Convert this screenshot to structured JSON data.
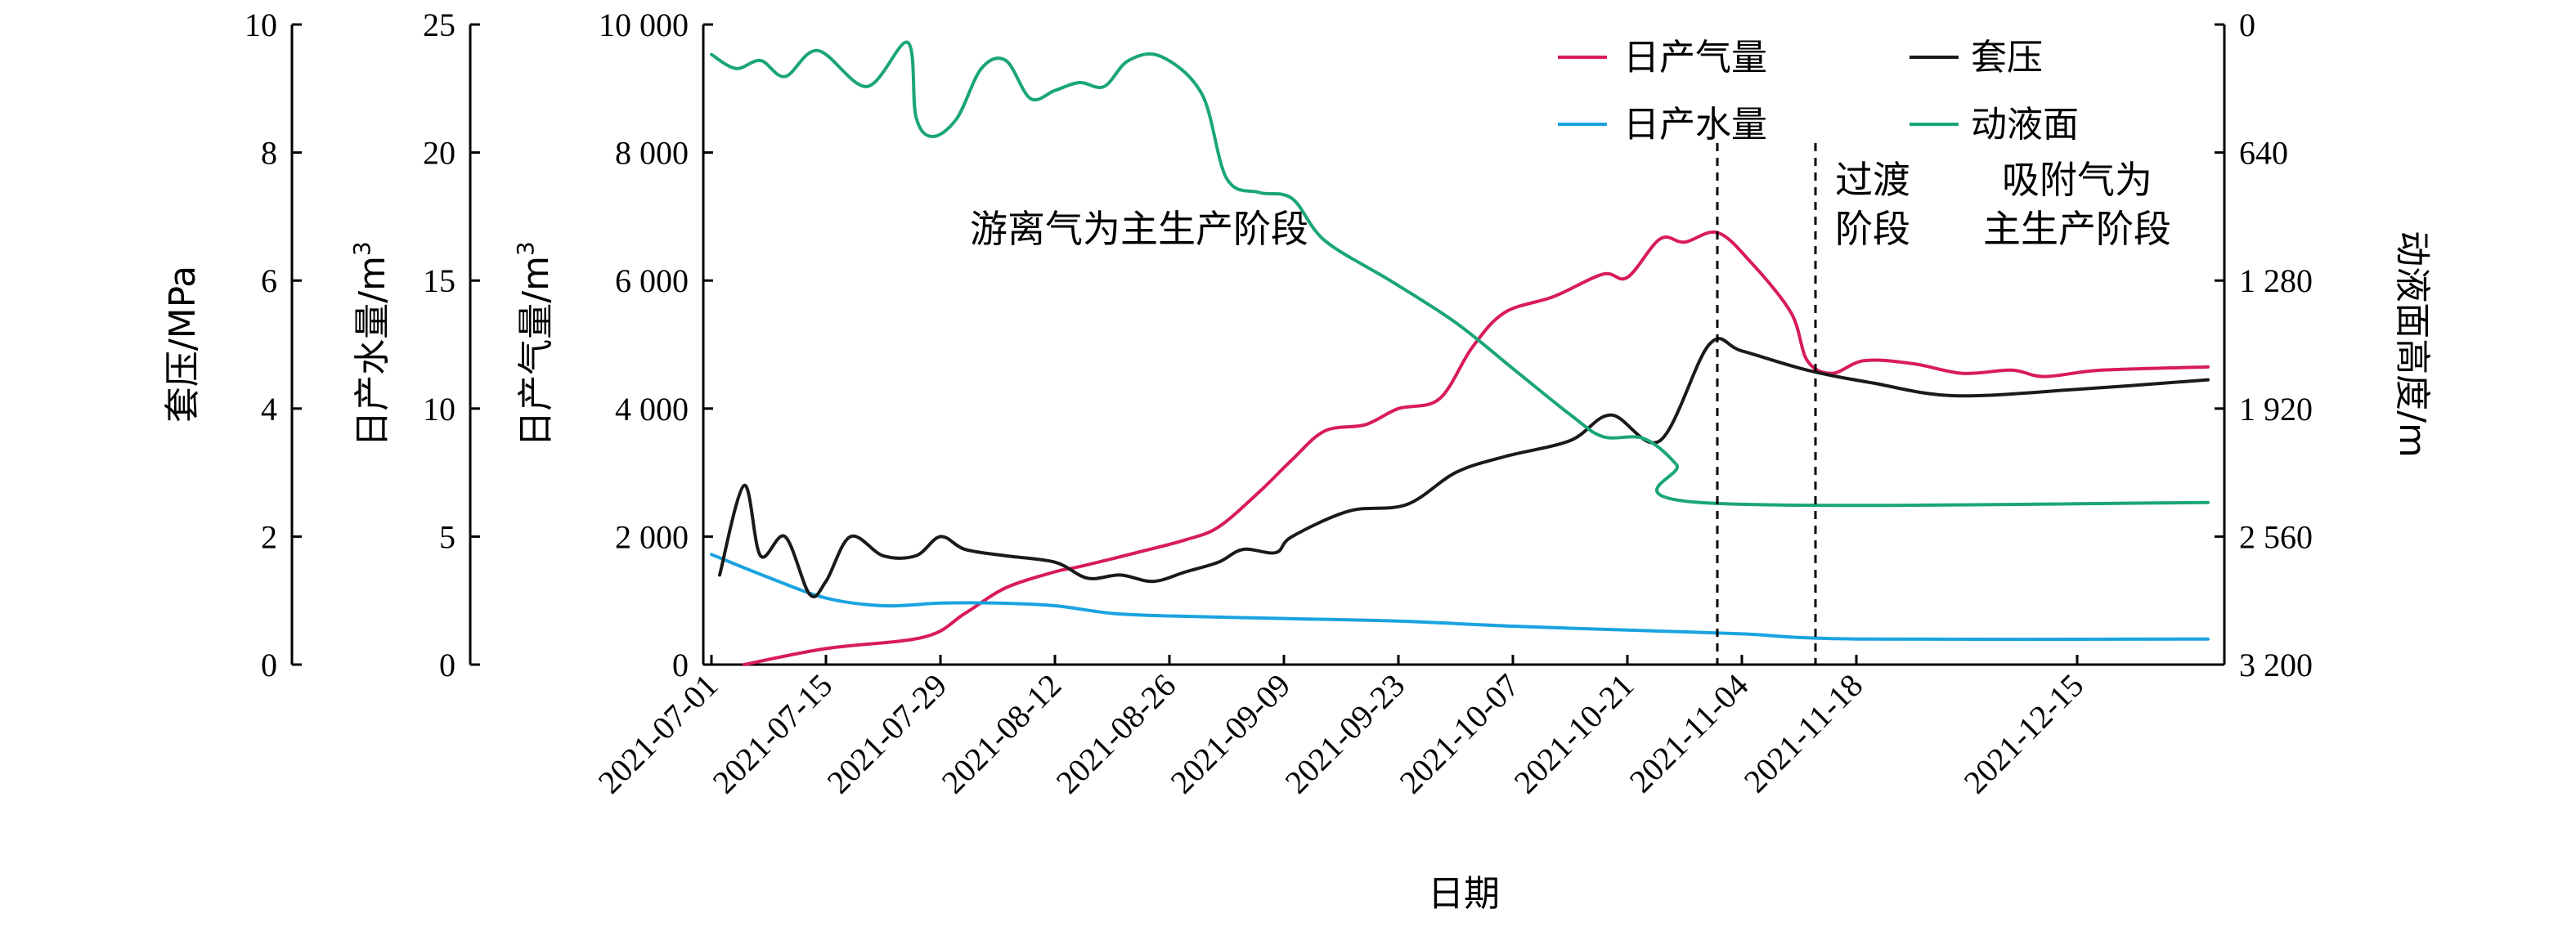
{
  "chart_data": {
    "type": "line",
    "xlabel": "日期",
    "x_ticks": [
      "2021-07-01",
      "2021-07-15",
      "2021-07-29",
      "2021-08-12",
      "2021-08-26",
      "2021-09-09",
      "2021-09-23",
      "2021-10-07",
      "2021-10-21",
      "2021-11-04",
      "2021-11-18",
      "2021-12-15"
    ],
    "x_range": [
      "2021-06-30",
      "2022-01-02"
    ],
    "axes": {
      "casing_pressure": {
        "label": "套压/MPa",
        "range": [
          0,
          10
        ],
        "ticks": [
          0,
          2,
          4,
          6,
          8,
          10
        ],
        "tick_labels": [
          "0",
          "2",
          "4",
          "6",
          "8",
          "10"
        ],
        "side": "left"
      },
      "water": {
        "label": "日产水量/m",
        "label_sup": "3",
        "range": [
          0,
          25
        ],
        "ticks": [
          0,
          5,
          10,
          15,
          20,
          25
        ],
        "tick_labels": [
          "0",
          "5",
          "10",
          "15",
          "20",
          "25"
        ],
        "side": "left"
      },
      "gas": {
        "label": "日产气量/m",
        "label_sup": "3",
        "range": [
          0,
          10000
        ],
        "ticks": [
          0,
          2000,
          4000,
          6000,
          8000,
          10000
        ],
        "tick_labels": [
          "0",
          "2 000",
          "4 000",
          "6 000",
          "8 000",
          "10 000"
        ],
        "side": "left"
      },
      "fluid_level": {
        "label": "动液面高度/m",
        "range": [
          0,
          3200
        ],
        "inverted": true,
        "ticks": [
          0,
          640,
          1280,
          1920,
          2560,
          3200
        ],
        "tick_labels": [
          "0",
          "640",
          "1 280",
          "1 920",
          "2 560",
          "3 200"
        ],
        "side": "right"
      }
    },
    "series": [
      {
        "name": "日产气量",
        "axis": "gas",
        "color": "#d81b5a",
        "points": [
          [
            "2021-07-05",
            0
          ],
          [
            "2021-07-15",
            250
          ],
          [
            "2021-07-27",
            430
          ],
          [
            "2021-08-01",
            800
          ],
          [
            "2021-08-06",
            1200
          ],
          [
            "2021-08-12",
            1450
          ],
          [
            "2021-08-15",
            1530
          ],
          [
            "2021-08-22",
            1750
          ],
          [
            "2021-08-28",
            1950
          ],
          [
            "2021-09-01",
            2150
          ],
          [
            "2021-09-06",
            2700
          ],
          [
            "2021-09-10",
            3200
          ],
          [
            "2021-09-14",
            3650
          ],
          [
            "2021-09-19",
            3750
          ],
          [
            "2021-09-23",
            4000
          ],
          [
            "2021-09-28",
            4150
          ],
          [
            "2021-10-02",
            4950
          ],
          [
            "2021-10-06",
            5500
          ],
          [
            "2021-10-12",
            5750
          ],
          [
            "2021-10-18",
            6100
          ],
          [
            "2021-10-21",
            6050
          ],
          [
            "2021-10-25",
            6650
          ],
          [
            "2021-10-28",
            6600
          ],
          [
            "2021-11-01",
            6750
          ],
          [
            "2021-11-05",
            6300
          ],
          [
            "2021-11-10",
            5500
          ],
          [
            "2021-11-12",
            4750
          ],
          [
            "2021-11-15",
            4550
          ],
          [
            "2021-11-19",
            4750
          ],
          [
            "2021-11-25",
            4700
          ],
          [
            "2021-12-01",
            4550
          ],
          [
            "2021-12-07",
            4600
          ],
          [
            "2021-12-11",
            4500
          ],
          [
            "2021-12-18",
            4600
          ],
          [
            "2021-12-31",
            4650
          ]
        ]
      },
      {
        "name": "日产水量",
        "axis": "water",
        "color": "#1aa3e0",
        "points": [
          [
            "2021-07-01",
            4.3
          ],
          [
            "2021-07-08",
            3.4
          ],
          [
            "2021-07-15",
            2.6
          ],
          [
            "2021-07-22",
            2.3
          ],
          [
            "2021-07-29",
            2.4
          ],
          [
            "2021-08-05",
            2.4
          ],
          [
            "2021-08-12",
            2.3
          ],
          [
            "2021-08-19",
            2.0
          ],
          [
            "2021-08-26",
            1.9
          ],
          [
            "2021-09-09",
            1.8
          ],
          [
            "2021-09-23",
            1.7
          ],
          [
            "2021-10-07",
            1.5
          ],
          [
            "2021-10-21",
            1.35
          ],
          [
            "2021-11-04",
            1.2
          ],
          [
            "2021-11-18",
            1.0
          ],
          [
            "2021-12-31",
            1.0
          ]
        ]
      },
      {
        "name": "套压",
        "axis": "casing_pressure",
        "color": "#1a1a1a",
        "points": [
          [
            "2021-07-02",
            1.4
          ],
          [
            "2021-07-05",
            2.8
          ],
          [
            "2021-07-07",
            1.7
          ],
          [
            "2021-07-10",
            2.0
          ],
          [
            "2021-07-13",
            1.1
          ],
          [
            "2021-07-15",
            1.3
          ],
          [
            "2021-07-18",
            2.0
          ],
          [
            "2021-07-22",
            1.7
          ],
          [
            "2021-07-26",
            1.7
          ],
          [
            "2021-07-29",
            2.0
          ],
          [
            "2021-08-01",
            1.8
          ],
          [
            "2021-08-06",
            1.7
          ],
          [
            "2021-08-12",
            1.6
          ],
          [
            "2021-08-16",
            1.35
          ],
          [
            "2021-08-20",
            1.4
          ],
          [
            "2021-08-24",
            1.3
          ],
          [
            "2021-08-28",
            1.45
          ],
          [
            "2021-09-01",
            1.6
          ],
          [
            "2021-09-04",
            1.8
          ],
          [
            "2021-09-08",
            1.75
          ],
          [
            "2021-09-10",
            2.0
          ],
          [
            "2021-09-17",
            2.4
          ],
          [
            "2021-09-24",
            2.5
          ],
          [
            "2021-09-30",
            3.0
          ],
          [
            "2021-10-06",
            3.25
          ],
          [
            "2021-10-14",
            3.5
          ],
          [
            "2021-10-19",
            3.9
          ],
          [
            "2021-10-25",
            3.5
          ],
          [
            "2021-10-31",
            5.0
          ],
          [
            "2021-11-04",
            4.9
          ],
          [
            "2021-11-12",
            4.6
          ],
          [
            "2021-11-20",
            4.4
          ],
          [
            "2021-11-30",
            4.2
          ],
          [
            "2021-12-15",
            4.3
          ],
          [
            "2021-12-31",
            4.45
          ]
        ]
      },
      {
        "name": "动液面",
        "axis": "fluid_level",
        "color": "#1aa57a",
        "points": [
          [
            "2021-07-01",
            150
          ],
          [
            "2021-07-04",
            220
          ],
          [
            "2021-07-07",
            180
          ],
          [
            "2021-07-10",
            260
          ],
          [
            "2021-07-14",
            130
          ],
          [
            "2021-07-20",
            310
          ],
          [
            "2021-07-25",
            90
          ],
          [
            "2021-07-26",
            460
          ],
          [
            "2021-07-28",
            560
          ],
          [
            "2021-07-31",
            470
          ],
          [
            "2021-08-03",
            220
          ],
          [
            "2021-08-06",
            180
          ],
          [
            "2021-08-09",
            370
          ],
          [
            "2021-08-12",
            330
          ],
          [
            "2021-08-15",
            290
          ],
          [
            "2021-08-18",
            310
          ],
          [
            "2021-08-21",
            180
          ],
          [
            "2021-08-25",
            160
          ],
          [
            "2021-08-30",
            350
          ],
          [
            "2021-09-02",
            770
          ],
          [
            "2021-09-06",
            840
          ],
          [
            "2021-09-10",
            870
          ],
          [
            "2021-09-14",
            1080
          ],
          [
            "2021-09-22",
            1280
          ],
          [
            "2021-09-30",
            1490
          ],
          [
            "2021-10-07",
            1720
          ],
          [
            "2021-10-14",
            1950
          ],
          [
            "2021-10-18",
            2060
          ],
          [
            "2021-10-23",
            2070
          ],
          [
            "2021-10-27",
            2200
          ],
          [
            "2021-10-30",
            2390
          ],
          [
            "2021-12-31",
            2390
          ]
        ]
      }
    ],
    "legend": [
      {
        "name": "日产气量",
        "color": "#d81b5a"
      },
      {
        "name": "套压",
        "color": "#1a1a1a"
      },
      {
        "name": "日产水量",
        "color": "#1aa3e0"
      },
      {
        "name": "动液面",
        "color": "#1aa57a"
      }
    ],
    "legend_position": "top-right",
    "annotations": {
      "stage1": [
        "游离气为主生产阶段"
      ],
      "stage2": [
        "过渡",
        "阶段"
      ],
      "stage3": [
        "吸附气为",
        "主生产阶段"
      ]
    },
    "dividers": [
      "2021-11-01",
      "2021-11-13"
    ],
    "grid": false
  }
}
